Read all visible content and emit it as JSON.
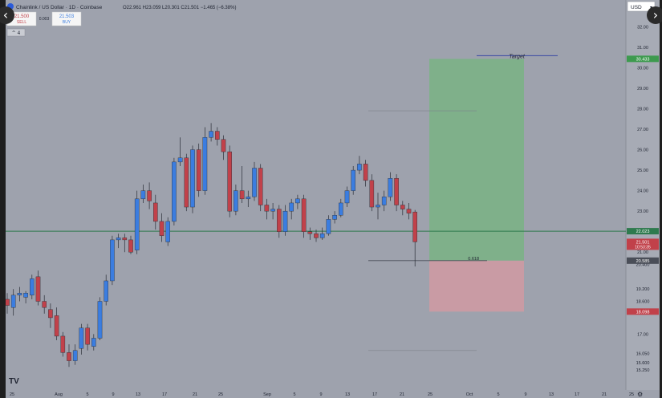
{
  "header": {
    "symbol_title": "Chainlink / US Dollar · 1D · Coinbase",
    "ohlc": "O22.961  H23.059  L20.301  C21.501  −1.465 (−6.38%)",
    "sell_price": "21.500",
    "sell_label": "SELL",
    "spread": "0.003",
    "buy_price": "21.503",
    "buy_label": "BUY",
    "currency": "USD",
    "indicator_toggle": "^ 4",
    "logo": "TV"
  },
  "icons": {
    "prev": "chevron-left-icon",
    "next": "chevron-right-icon",
    "settings": "gear-icon",
    "symbol": "chainlink-icon"
  },
  "colors": {
    "background": "#9ea2ad",
    "up": "#3b7de0",
    "down": "#c1414a",
    "support_line": "#2e7a4e",
    "target_zone": "#7fb08a",
    "stop_zone": "#c99ba4",
    "target_line": "#3a49a3"
  },
  "chart_data": {
    "type": "candlestick",
    "ylim": [
      14.9,
      32.6
    ],
    "y_ticks": [
      "32.00",
      "31.00",
      "30.00",
      "29.00",
      "28.00",
      "27.00",
      "26.00",
      "25.00",
      "24.00",
      "23.00",
      "21.00",
      "20.400",
      "19.200",
      "18.600",
      "17.00",
      "16.050",
      "15.600",
      "15.250"
    ],
    "x_ticks": [
      "25",
      "Aug",
      "5",
      "9",
      "13",
      "17",
      "21",
      "25",
      "Sep",
      "5",
      "9",
      "13",
      "17",
      "21",
      "25",
      "Oct",
      "5",
      "9",
      "13",
      "17",
      "21",
      "25"
    ],
    "candles": [
      {
        "o": 18.7,
        "h": 19.0,
        "l": 18.0,
        "c": 18.4
      },
      {
        "o": 18.3,
        "h": 19.2,
        "l": 17.9,
        "c": 18.9
      },
      {
        "o": 18.9,
        "h": 19.3,
        "l": 18.6,
        "c": 19.0
      },
      {
        "o": 18.8,
        "h": 19.1,
        "l": 18.5,
        "c": 19.0
      },
      {
        "o": 18.9,
        "h": 19.9,
        "l": 18.7,
        "c": 19.7
      },
      {
        "o": 19.8,
        "h": 20.1,
        "l": 18.4,
        "c": 18.6
      },
      {
        "o": 18.6,
        "h": 18.9,
        "l": 18.0,
        "c": 18.3
      },
      {
        "o": 18.2,
        "h": 18.5,
        "l": 17.3,
        "c": 17.8
      },
      {
        "o": 17.9,
        "h": 18.3,
        "l": 16.7,
        "c": 16.9
      },
      {
        "o": 16.9,
        "h": 17.1,
        "l": 15.9,
        "c": 16.1
      },
      {
        "o": 16.1,
        "h": 16.5,
        "l": 15.4,
        "c": 15.7
      },
      {
        "o": 15.7,
        "h": 16.5,
        "l": 15.5,
        "c": 16.2
      },
      {
        "o": 16.3,
        "h": 17.5,
        "l": 16.0,
        "c": 17.3
      },
      {
        "o": 17.3,
        "h": 17.5,
        "l": 16.2,
        "c": 16.5
      },
      {
        "o": 16.4,
        "h": 17.0,
        "l": 16.2,
        "c": 16.8
      },
      {
        "o": 16.8,
        "h": 18.8,
        "l": 16.7,
        "c": 18.6
      },
      {
        "o": 18.6,
        "h": 19.9,
        "l": 18.4,
        "c": 19.6
      },
      {
        "o": 19.6,
        "h": 21.8,
        "l": 19.4,
        "c": 21.6
      },
      {
        "o": 21.6,
        "h": 21.9,
        "l": 21.2,
        "c": 21.7
      },
      {
        "o": 21.7,
        "h": 21.9,
        "l": 21.0,
        "c": 21.6
      },
      {
        "o": 21.6,
        "h": 21.8,
        "l": 20.9,
        "c": 21.0
      },
      {
        "o": 21.1,
        "h": 24.0,
        "l": 20.9,
        "c": 23.6
      },
      {
        "o": 23.6,
        "h": 24.3,
        "l": 23.4,
        "c": 24.0
      },
      {
        "o": 24.0,
        "h": 24.4,
        "l": 23.1,
        "c": 23.5
      },
      {
        "o": 23.4,
        "h": 23.8,
        "l": 22.1,
        "c": 22.5
      },
      {
        "o": 22.5,
        "h": 22.9,
        "l": 21.5,
        "c": 21.8
      },
      {
        "o": 21.5,
        "h": 22.7,
        "l": 21.3,
        "c": 22.5
      },
      {
        "o": 22.5,
        "h": 25.6,
        "l": 22.3,
        "c": 25.4
      },
      {
        "o": 25.4,
        "h": 26.6,
        "l": 25.2,
        "c": 25.6
      },
      {
        "o": 25.6,
        "h": 25.8,
        "l": 23.0,
        "c": 23.2
      },
      {
        "o": 23.2,
        "h": 26.2,
        "l": 22.9,
        "c": 26.0
      },
      {
        "o": 26.0,
        "h": 26.3,
        "l": 23.7,
        "c": 24.0
      },
      {
        "o": 24.0,
        "h": 27.1,
        "l": 23.8,
        "c": 26.6
      },
      {
        "o": 26.6,
        "h": 27.3,
        "l": 26.4,
        "c": 26.9
      },
      {
        "o": 26.9,
        "h": 27.1,
        "l": 26.2,
        "c": 26.5
      },
      {
        "o": 26.5,
        "h": 26.7,
        "l": 25.5,
        "c": 25.9
      },
      {
        "o": 25.9,
        "h": 26.2,
        "l": 22.7,
        "c": 23.0
      },
      {
        "o": 23.0,
        "h": 24.3,
        "l": 22.8,
        "c": 24.0
      },
      {
        "o": 24.0,
        "h": 25.2,
        "l": 23.4,
        "c": 23.6
      },
      {
        "o": 23.6,
        "h": 24.0,
        "l": 23.2,
        "c": 23.7
      },
      {
        "o": 23.7,
        "h": 25.4,
        "l": 23.5,
        "c": 25.1
      },
      {
        "o": 25.1,
        "h": 25.3,
        "l": 23.0,
        "c": 23.3
      },
      {
        "o": 23.3,
        "h": 23.6,
        "l": 22.6,
        "c": 23.0
      },
      {
        "o": 23.0,
        "h": 23.4,
        "l": 22.6,
        "c": 23.1
      },
      {
        "o": 23.1,
        "h": 23.3,
        "l": 21.7,
        "c": 22.0
      },
      {
        "o": 22.0,
        "h": 23.3,
        "l": 21.8,
        "c": 23.0
      },
      {
        "o": 23.0,
        "h": 23.6,
        "l": 22.6,
        "c": 23.4
      },
      {
        "o": 23.4,
        "h": 23.8,
        "l": 23.1,
        "c": 23.6
      },
      {
        "o": 23.6,
        "h": 23.8,
        "l": 21.7,
        "c": 22.0
      },
      {
        "o": 22.0,
        "h": 22.2,
        "l": 21.6,
        "c": 21.9
      },
      {
        "o": 21.9,
        "h": 22.1,
        "l": 21.5,
        "c": 21.7
      },
      {
        "o": 21.7,
        "h": 22.2,
        "l": 21.6,
        "c": 21.9
      },
      {
        "o": 21.9,
        "h": 22.8,
        "l": 21.8,
        "c": 22.6
      },
      {
        "o": 22.6,
        "h": 23.0,
        "l": 22.4,
        "c": 22.8
      },
      {
        "o": 22.8,
        "h": 23.6,
        "l": 22.7,
        "c": 23.4
      },
      {
        "o": 23.4,
        "h": 24.2,
        "l": 23.2,
        "c": 24.0
      },
      {
        "o": 24.0,
        "h": 25.2,
        "l": 23.8,
        "c": 25.0
      },
      {
        "o": 25.0,
        "h": 25.7,
        "l": 24.8,
        "c": 25.3
      },
      {
        "o": 25.3,
        "h": 25.5,
        "l": 24.2,
        "c": 24.5
      },
      {
        "o": 24.5,
        "h": 24.8,
        "l": 23.0,
        "c": 23.2
      },
      {
        "o": 23.2,
        "h": 23.9,
        "l": 22.6,
        "c": 23.3
      },
      {
        "o": 23.3,
        "h": 24.0,
        "l": 23.0,
        "c": 23.7
      },
      {
        "o": 23.7,
        "h": 24.9,
        "l": 23.5,
        "c": 24.6
      },
      {
        "o": 24.6,
        "h": 24.8,
        "l": 23.0,
        "c": 23.3
      },
      {
        "o": 23.3,
        "h": 23.5,
        "l": 22.8,
        "c": 23.1
      },
      {
        "o": 23.1,
        "h": 23.4,
        "l": 22.6,
        "c": 22.9
      },
      {
        "o": 22.961,
        "h": 23.059,
        "l": 20.301,
        "c": 21.501
      }
    ],
    "annotations": {
      "support_price": 22.023,
      "target_price": 30.433,
      "fib_price": 20.585,
      "fib_label": "0.618",
      "stop_price": 18.098,
      "target_label": "Target",
      "last_price": "21.501",
      "last_countdown": "10:53:35",
      "support_label": "22.023",
      "target_value_label": "30.433",
      "fib_value_label": "20.585",
      "stop_label": "18.098",
      "upper_faint_price": 27.9,
      "lower_faint_price": 16.2
    }
  }
}
